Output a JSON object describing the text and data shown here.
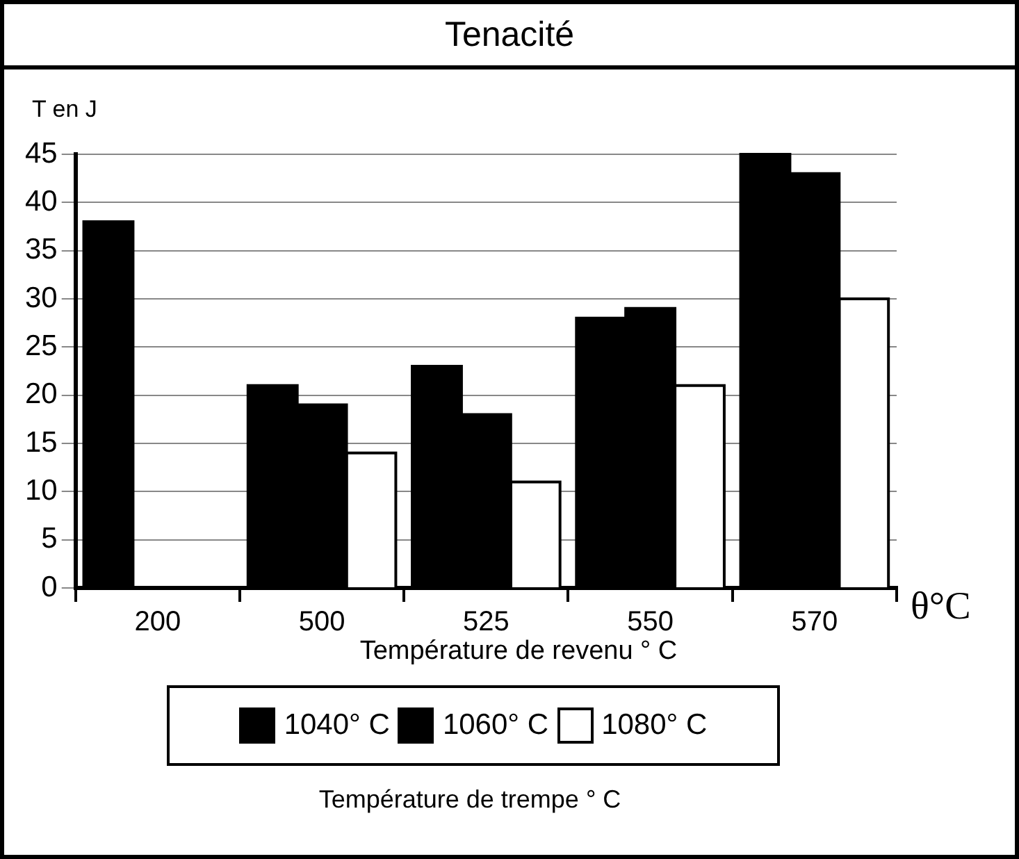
{
  "chart_data": {
    "type": "bar",
    "title": "Tenacité",
    "ylabel": "T en J",
    "xlabel": "Température de revenu ° C",
    "legend_title": "Température de trempe ° C",
    "annotations": [
      "θ°C"
    ],
    "categories": [
      "200",
      "500",
      "525",
      "550",
      "570"
    ],
    "series": [
      {
        "name": "1040° C",
        "color": "#000000",
        "values": [
          38,
          21,
          23,
          28,
          45
        ]
      },
      {
        "name": "1060° C",
        "color": "#000000",
        "values": [
          null,
          19,
          18,
          29,
          43
        ]
      },
      {
        "name": "1080° C",
        "color": "#ffffff",
        "values": [
          null,
          14,
          11,
          21,
          30
        ]
      }
    ],
    "ylim": [
      0,
      45
    ],
    "yticks": [
      0,
      5,
      10,
      15,
      20,
      25,
      30,
      35,
      40,
      45
    ],
    "grid": "y",
    "legend": "bottom"
  }
}
